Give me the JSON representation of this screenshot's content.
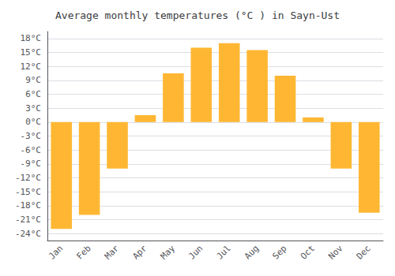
{
  "chart_data": {
    "type": "bar",
    "title": "Average monthly temperatures (°C ) in Sayn-Ust",
    "categories": [
      "Jan",
      "Feb",
      "Mar",
      "Apr",
      "May",
      "Jun",
      "Jul",
      "Aug",
      "Sep",
      "Oct",
      "Nov",
      "Dec"
    ],
    "values": [
      -23,
      -20,
      -10,
      1.5,
      10.5,
      16,
      17,
      15.5,
      10,
      1,
      -10,
      -19.5
    ],
    "color": "#FFB733",
    "ylim": [
      -25.5,
      19.5
    ],
    "yticks": [
      {
        "value": -24,
        "label": "-24°C"
      },
      {
        "value": -21,
        "label": "-21°C"
      },
      {
        "value": -18,
        "label": "-18°C"
      },
      {
        "value": -15,
        "label": "-15°C"
      },
      {
        "value": -12,
        "label": "-12°C"
      },
      {
        "value": -9,
        "label": "-9°C"
      },
      {
        "value": -6,
        "label": "-6°C"
      },
      {
        "value": -3,
        "label": "-3°C"
      },
      {
        "value": 0,
        "label": "0°C"
      },
      {
        "value": 3,
        "label": "3°C"
      },
      {
        "value": 6,
        "label": "6°C"
      },
      {
        "value": 9,
        "label": "9°C"
      },
      {
        "value": 12,
        "label": "12°C"
      },
      {
        "value": 15,
        "label": "15°C"
      },
      {
        "value": 18,
        "label": "18°C"
      }
    ],
    "grid": true
  }
}
